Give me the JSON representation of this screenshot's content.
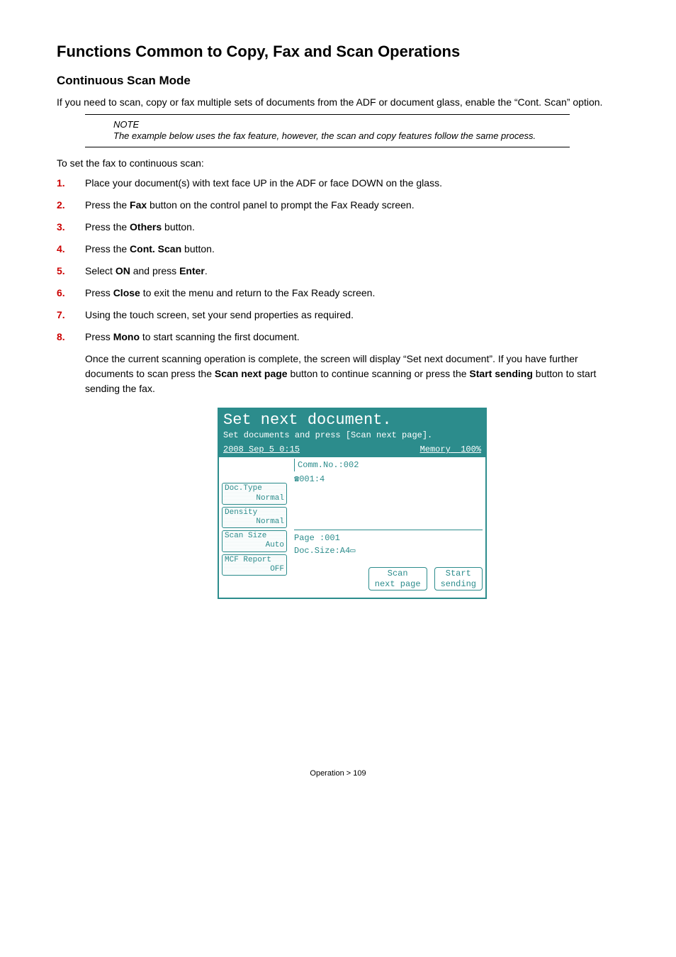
{
  "title": "Functions Common to Copy, Fax and Scan Operations",
  "section": "Continuous Scan Mode",
  "intro": "If you need to scan, copy or fax multiple sets of documents from the ADF or document glass, enable the “Cont. Scan” option.",
  "note": {
    "heading": "NOTE",
    "body": "The example below uses the fax feature, however, the scan and copy features follow the same process."
  },
  "lead": "To set the fax to continuous scan:",
  "steps": [
    {
      "n": "1.",
      "pre": "Place your document(s) with text face UP in the ADF or face DOWN on the glass."
    },
    {
      "n": "2.",
      "pre": "Press the ",
      "b1": "Fax",
      "post": " button on the control panel to prompt the Fax Ready screen."
    },
    {
      "n": "3.",
      "pre": "Press the ",
      "b1": "Others",
      "post": " button."
    },
    {
      "n": "4.",
      "pre": "Press the ",
      "b1": "Cont. Scan",
      "post": " button."
    },
    {
      "n": "5.",
      "pre": "Select ",
      "b1": "ON",
      "mid": " and press ",
      "b2": "Enter",
      "post": "."
    },
    {
      "n": "6.",
      "pre": "Press ",
      "b1": "Close",
      "post": " to exit the menu and return to the Fax Ready screen."
    },
    {
      "n": "7.",
      "pre": "Using the touch screen, set your send properties as required."
    },
    {
      "n": "8.",
      "pre": "Press ",
      "b1": "Mono",
      "post": " to start scanning the first document."
    }
  ],
  "result": {
    "pre": "Once the current scanning operation is complete, the screen will display “Set next document”. If you have further documents to scan press the ",
    "b1": "Scan next page",
    "mid": " button to continue scanning or press the ",
    "b2": "Start sending",
    "post": " button to start sending the fax."
  },
  "screen": {
    "title": "Set next document.",
    "sub": "Set documents and press [Scan next page].",
    "date": "2008 Sep  5  0:15",
    "mem_label": "Memory",
    "mem_val": "100%",
    "comm": "Comm.No.:002",
    "phone": "☎001:4",
    "left": [
      {
        "t": "Doc.Type",
        "v": "Normal"
      },
      {
        "t": "Density",
        "v": "Normal"
      },
      {
        "t": "Scan Size",
        "v": "Auto"
      },
      {
        "t": "MCF Report",
        "v": "OFF"
      }
    ],
    "page": "Page :001",
    "docsize": "Doc.Size:A4▭",
    "act1a": "Scan",
    "act1b": "next page",
    "act2a": "Start",
    "act2b": "sending"
  },
  "footer": "Operation > 109"
}
